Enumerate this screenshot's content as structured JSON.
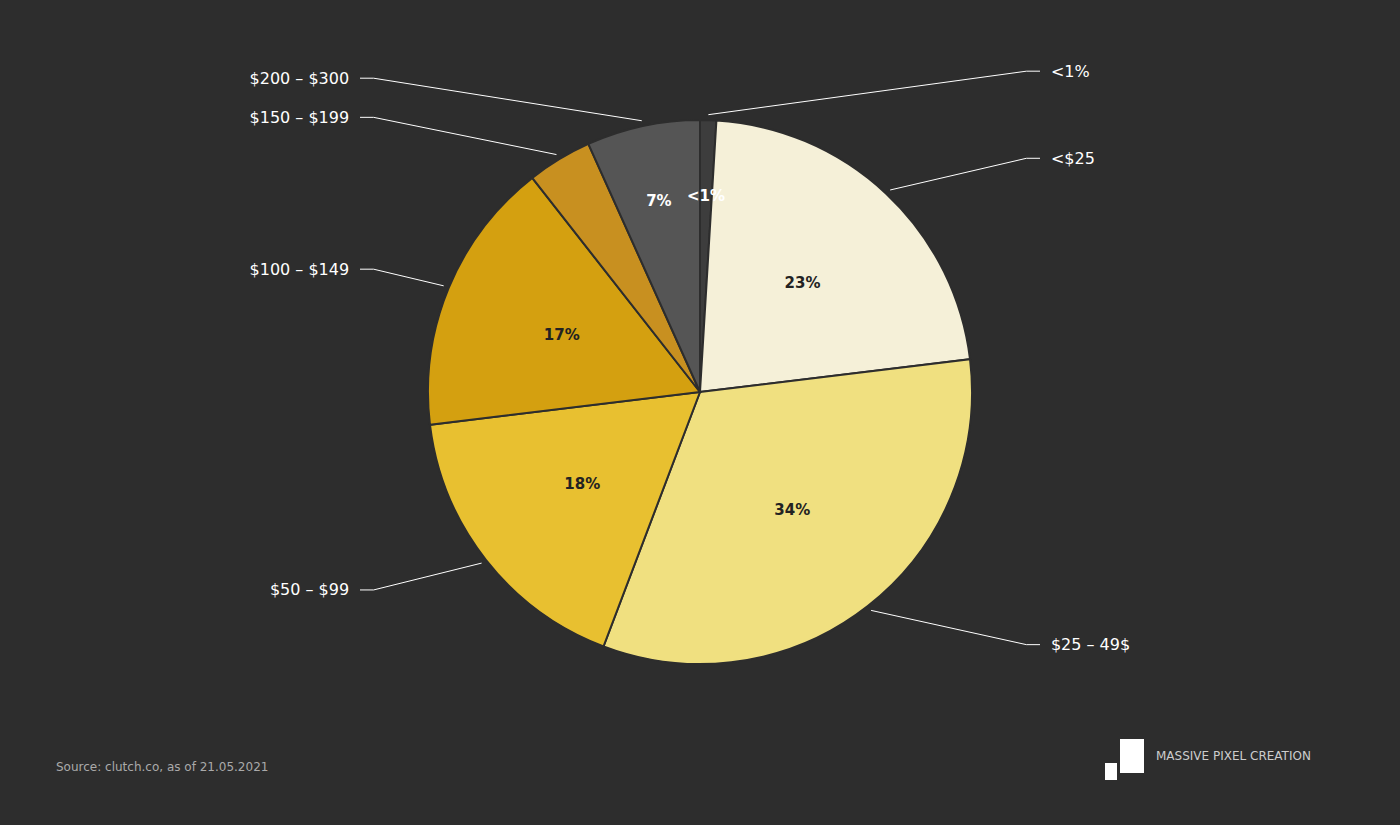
{
  "chart_data": {
    "type": "pie",
    "categories": [
      "<1%",
      "<$25",
      "$25 – 49$",
      "$50 – $99",
      "$100 – $149",
      "$150 – $199",
      "$200 – $300"
    ],
    "values": [
      1,
      23,
      34,
      18,
      17,
      4,
      7
    ],
    "value_labels": [
      "<1%",
      "23%",
      "34%",
      "18%",
      "17%",
      null,
      "7%"
    ],
    "colors": [
      "#3d3d3d",
      "#f5f0d8",
      "#f0e080",
      "#e8c030",
      "#d4a010",
      "#c89020",
      "#555555"
    ],
    "data_labels": true,
    "annotations": [
      "Source: clutch.co, as of 21.05.2021",
      "MASSIVE PIXEL CREATION"
    ]
  }
}
